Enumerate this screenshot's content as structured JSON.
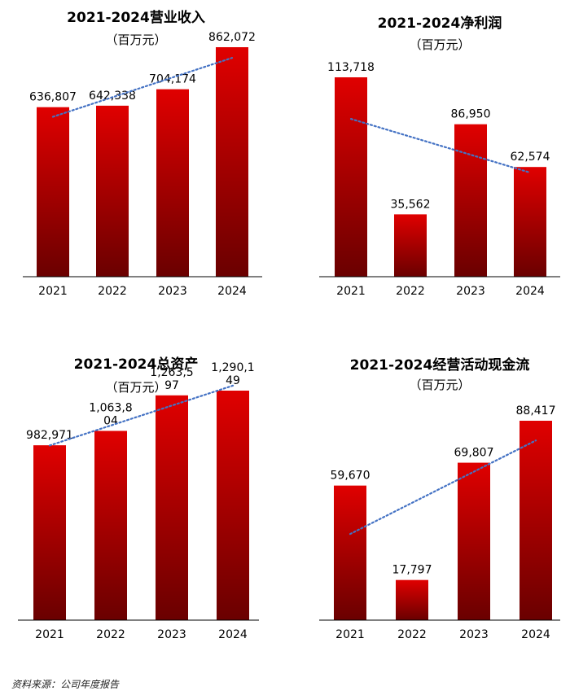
{
  "colors": {
    "bar_top": "#e00000",
    "bar_bottom": "#6a0000",
    "trend": "#4472c4"
  },
  "source_note": "资料来源：公司年度报告",
  "chart_data": [
    {
      "type": "bar",
      "title": "2021-2024营业收入",
      "subtitle": "（百万元）",
      "categories": [
        "2021",
        "2022",
        "2023",
        "2024"
      ],
      "values": [
        636807,
        642338,
        704174,
        862072
      ],
      "value_labels": [
        [
          "636,807"
        ],
        [
          "642,338"
        ],
        [
          "704,174"
        ],
        [
          "862,072"
        ]
      ],
      "ylim": [
        0,
        950000
      ],
      "trendline": "linear-dotted"
    },
    {
      "type": "bar",
      "title": "2021-2024净利润",
      "subtitle": "（百万元）",
      "categories": [
        "2021",
        "2022",
        "2023",
        "2024"
      ],
      "values": [
        113718,
        35562,
        86950,
        62574
      ],
      "value_labels": [
        [
          "113,718"
        ],
        [
          "35,562"
        ],
        [
          "86,950"
        ],
        [
          "62,574"
        ]
      ],
      "ylim": [
        0,
        130000
      ],
      "trendline": "linear-dotted"
    },
    {
      "type": "bar",
      "title": "2021-2024总资产",
      "subtitle": "（百万元）",
      "categories": [
        "2021",
        "2022",
        "2023",
        "2024"
      ],
      "values": [
        982971,
        1063804,
        1263597,
        1290149
      ],
      "value_labels": [
        [
          "982,971"
        ],
        [
          "1,063,8",
          "04"
        ],
        [
          "1,263,5",
          "97"
        ],
        [
          "1,290,1",
          "49"
        ]
      ],
      "ylim": [
        0,
        1500000
      ],
      "trendline": "linear-dotted"
    },
    {
      "type": "bar",
      "title": "2021-2024经营活动现金流",
      "subtitle": "（百万元）",
      "categories": [
        "2021",
        "2022",
        "2023",
        "2024"
      ],
      "values": [
        59670,
        17797,
        69807,
        88417
      ],
      "value_labels": [
        [
          "59,670"
        ],
        [
          "17,797"
        ],
        [
          "69,807"
        ],
        [
          "88,417"
        ]
      ],
      "ylim": [
        0,
        100000
      ],
      "trendline": "linear-dotted"
    }
  ]
}
